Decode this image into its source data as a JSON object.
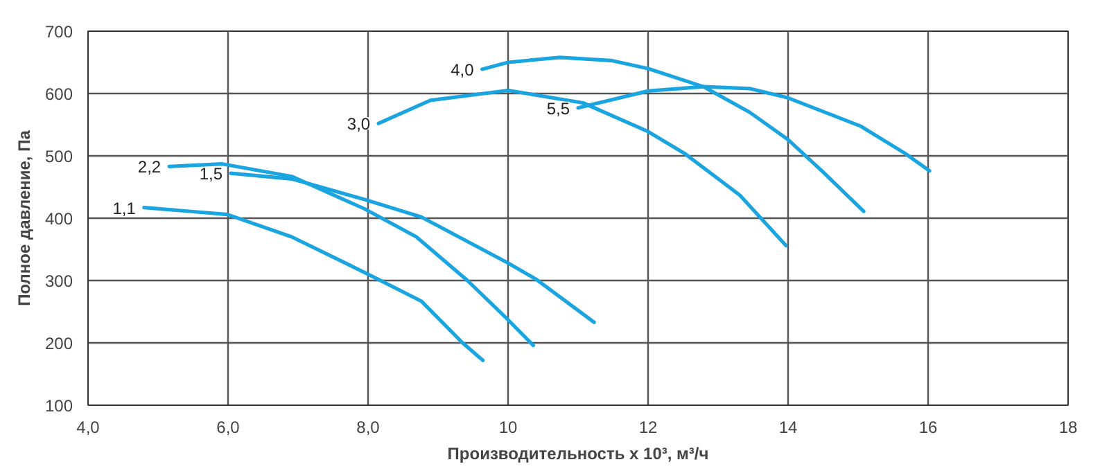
{
  "chart_data": {
    "type": "line",
    "xlabel": "Производительность х 10³, м³/ч",
    "ylabel": "Полное давление, Па",
    "xlim": [
      4,
      18
    ],
    "ylim": [
      100,
      700
    ],
    "xticks": [
      {
        "value": 4,
        "label": "4,0"
      },
      {
        "value": 6,
        "label": "6,0"
      },
      {
        "value": 8,
        "label": "8,0"
      },
      10,
      12,
      14,
      16,
      18
    ],
    "yticks": [
      100,
      200,
      300,
      400,
      500,
      600,
      700
    ],
    "grid": true,
    "marker": "none",
    "line_style": "solid",
    "series": [
      {
        "name": "1,1",
        "color": "#1aa5e0",
        "x": [
          4.8,
          5.99,
          6.91,
          7.95,
          8.76,
          9.35,
          9.64
        ],
        "values": [
          417,
          406,
          370,
          313,
          267,
          200,
          172
        ]
      },
      {
        "name": "2,2",
        "color": "#1aa5e0",
        "x": [
          5.16,
          5.92,
          6.91,
          7.95,
          8.69,
          9.42,
          10.0,
          10.36
        ],
        "values": [
          483,
          487,
          467,
          415,
          370,
          300,
          237,
          196
        ]
      },
      {
        "name": "1,5",
        "color": "#1aa5e0",
        "x": [
          6.04,
          6.91,
          7.95,
          8.76,
          10.0,
          10.4,
          11.23
        ],
        "values": [
          472,
          463,
          430,
          402,
          328,
          302,
          233
        ]
      },
      {
        "name": "3,0",
        "color": "#1aa5e0",
        "x": [
          8.15,
          8.89,
          10.0,
          11.07,
          12.0,
          12.52,
          13.31,
          13.97
        ],
        "values": [
          552,
          589,
          605,
          585,
          539,
          504,
          437,
          356
        ]
      },
      {
        "name": "4,0",
        "color": "#1aa5e0",
        "x": [
          9.63,
          10.0,
          10.74,
          11.47,
          12.0,
          12.79,
          13.45,
          14.0,
          14.5,
          15.08
        ],
        "values": [
          639,
          650,
          658,
          653,
          640,
          611,
          570,
          526,
          474,
          411
        ]
      },
      {
        "name": "5,5",
        "color": "#1aa5e0",
        "x": [
          11.0,
          12.0,
          12.79,
          13.45,
          14.0,
          15.03,
          15.67,
          16.02
        ],
        "values": [
          577,
          604,
          611,
          608,
          593,
          548,
          504,
          476
        ]
      }
    ]
  }
}
